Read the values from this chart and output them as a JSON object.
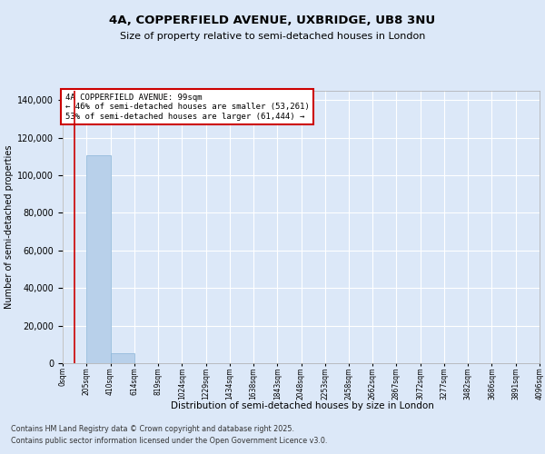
{
  "title_line1": "4A, COPPERFIELD AVENUE, UXBRIDGE, UB8 3NU",
  "title_line2": "Size of property relative to semi-detached houses in London",
  "xlabel": "Distribution of semi-detached houses by size in London",
  "ylabel": "Number of semi-detached properties",
  "bar_color": "#b8d0ea",
  "bar_edge_color": "#89b4d8",
  "annotation_box_color": "#cc0000",
  "annotation_line_color": "#cc0000",
  "property_size": 99,
  "pct_smaller": 46,
  "count_smaller": 53261,
  "pct_larger": 53,
  "count_larger": 61444,
  "figure_background_color": "#dce8f8",
  "plot_background": "#dce8f8",
  "footer_line1": "Contains HM Land Registry data © Crown copyright and database right 2025.",
  "footer_line2": "Contains public sector information licensed under the Open Government Licence v3.0.",
  "bin_edges": [
    0,
    205,
    410,
    614,
    819,
    1024,
    1229,
    1434,
    1638,
    1843,
    2048,
    2253,
    2458,
    2662,
    2867,
    3072,
    3277,
    3482,
    3686,
    3891,
    4096
  ],
  "bin_labels": [
    "0sqm",
    "205sqm",
    "410sqm",
    "614sqm",
    "819sqm",
    "1024sqm",
    "1229sqm",
    "1434sqm",
    "1638sqm",
    "1843sqm",
    "2048sqm",
    "2253sqm",
    "2458sqm",
    "2662sqm",
    "2867sqm",
    "3072sqm",
    "3277sqm",
    "3482sqm",
    "3686sqm",
    "3891sqm",
    "4096sqm"
  ],
  "bar_heights": [
    0,
    110500,
    5200,
    0,
    0,
    0,
    0,
    0,
    0,
    0,
    0,
    0,
    0,
    0,
    0,
    0,
    0,
    0,
    0,
    0
  ],
  "ylim": [
    0,
    145000
  ],
  "yticks": [
    0,
    20000,
    40000,
    60000,
    80000,
    100000,
    120000,
    140000
  ]
}
